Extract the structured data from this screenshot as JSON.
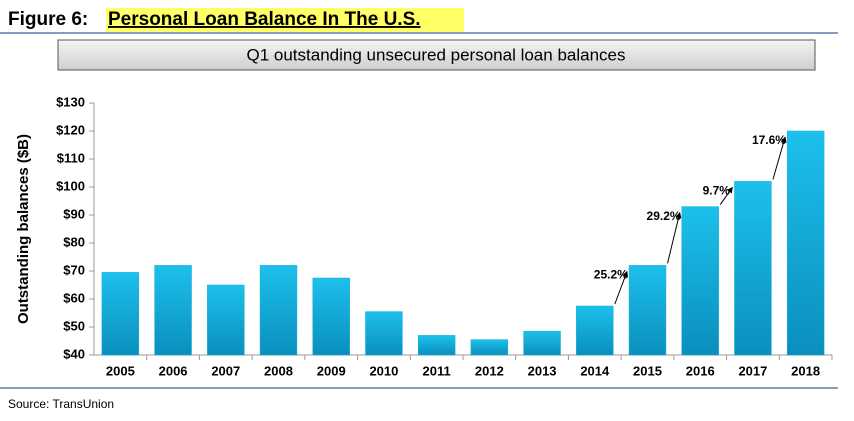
{
  "chart_data": {
    "type": "bar",
    "figure_label": "Figure 6:",
    "title": "Personal Loan Balance In The U.S.",
    "subtitle": "Q1 outstanding unsecured personal loan balances",
    "ylabel": "Outstanding balances ($B)",
    "source": "Source: TransUnion",
    "categories": [
      "2005",
      "2006",
      "2007",
      "2008",
      "2009",
      "2010",
      "2011",
      "2012",
      "2013",
      "2014",
      "2015",
      "2016",
      "2017",
      "2018"
    ],
    "values": [
      69.5,
      72,
      65,
      72,
      67.5,
      55.5,
      47,
      45.5,
      48.5,
      57.5,
      72,
      93,
      102,
      120
    ],
    "color": "#17aedb",
    "ylim": [
      40,
      130
    ],
    "yticks": [
      {
        "value": 40,
        "label": "$40"
      },
      {
        "value": 50,
        "label": "$50"
      },
      {
        "value": 60,
        "label": "$60"
      },
      {
        "value": 70,
        "label": "$70"
      },
      {
        "value": 80,
        "label": "$80"
      },
      {
        "value": 90,
        "label": "$90"
      },
      {
        "value": 100,
        "label": "$100"
      },
      {
        "value": 110,
        "label": "$110"
      },
      {
        "value": 120,
        "label": "$120"
      },
      {
        "value": 130,
        "label": "$130"
      }
    ],
    "grid": false,
    "annotations": [
      {
        "text": "25.2%",
        "from": "2014",
        "to": "2015"
      },
      {
        "text": "29.2%",
        "from": "2015",
        "to": "2016"
      },
      {
        "text": "9.7%",
        "from": "2016",
        "to": "2017"
      },
      {
        "text": "17.6%",
        "from": "2017",
        "to": "2018"
      }
    ]
  }
}
